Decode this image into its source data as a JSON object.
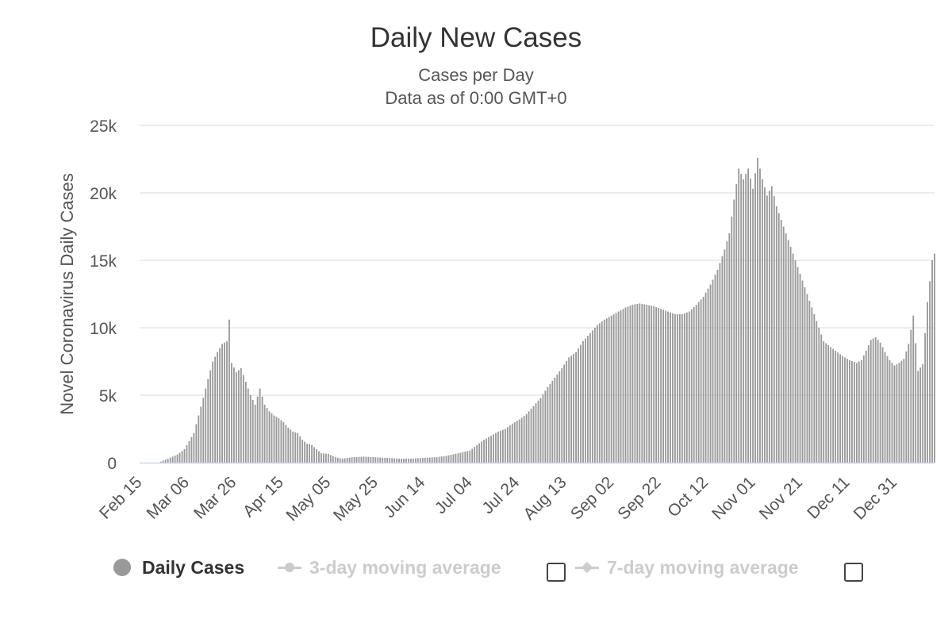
{
  "chart_data": {
    "type": "bar",
    "title": "Daily New Cases",
    "subtitle": [
      "Cases per Day",
      "Data as of 0:00 GMT+0"
    ],
    "ylabel": "Novel Coronavirus Daily Cases",
    "xlabel": "",
    "ylim": [
      0,
      25000
    ],
    "yticks": [
      0,
      5000,
      10000,
      15000,
      20000,
      25000
    ],
    "ytick_labels": [
      "0",
      "5k",
      "10k",
      "15k",
      "20k",
      "25k"
    ],
    "xtick_labels": [
      "Feb 15",
      "Mar 06",
      "Mar 26",
      "Apr 15",
      "May 05",
      "May 25",
      "Jun 14",
      "Jul 04",
      "Jul 24",
      "Aug 13",
      "Sep 02",
      "Sep 22",
      "Oct 12",
      "Nov 01",
      "Nov 21",
      "Dec 11",
      "Dec 31"
    ],
    "x_start": "Feb 15",
    "x_end": "Dec 31",
    "bar_color": "#999999",
    "grid": true,
    "anchor_values": [
      [
        0,
        0
      ],
      [
        8,
        0
      ],
      [
        12,
        300
      ],
      [
        16,
        600
      ],
      [
        19,
        1000
      ],
      [
        21,
        1600
      ],
      [
        23,
        2200
      ],
      [
        25,
        3500
      ],
      [
        27,
        4800
      ],
      [
        29,
        6200
      ],
      [
        31,
        7500
      ],
      [
        33,
        8200
      ],
      [
        35,
        8800
      ],
      [
        37,
        9000
      ],
      [
        38,
        10600
      ],
      [
        39,
        7400
      ],
      [
        41,
        6700
      ],
      [
        43,
        7000
      ],
      [
        45,
        6000
      ],
      [
        47,
        5000
      ],
      [
        49,
        4300
      ],
      [
        51,
        5500
      ],
      [
        53,
        4300
      ],
      [
        55,
        3800
      ],
      [
        57,
        3500
      ],
      [
        59,
        3300
      ],
      [
        61,
        3000
      ],
      [
        63,
        2600
      ],
      [
        65,
        2300
      ],
      [
        67,
        2200
      ],
      [
        69,
        1700
      ],
      [
        71,
        1400
      ],
      [
        73,
        1300
      ],
      [
        75,
        1000
      ],
      [
        77,
        700
      ],
      [
        80,
        650
      ],
      [
        83,
        400
      ],
      [
        86,
        300
      ],
      [
        90,
        400
      ],
      [
        95,
        450
      ],
      [
        100,
        400
      ],
      [
        105,
        350
      ],
      [
        110,
        300
      ],
      [
        115,
        300
      ],
      [
        120,
        350
      ],
      [
        125,
        400
      ],
      [
        130,
        500
      ],
      [
        135,
        700
      ],
      [
        140,
        900
      ],
      [
        143,
        1300
      ],
      [
        146,
        1700
      ],
      [
        149,
        2000
      ],
      [
        152,
        2300
      ],
      [
        155,
        2500
      ],
      [
        158,
        2900
      ],
      [
        161,
        3200
      ],
      [
        164,
        3600
      ],
      [
        167,
        4200
      ],
      [
        170,
        4800
      ],
      [
        173,
        5600
      ],
      [
        176,
        6300
      ],
      [
        179,
        7000
      ],
      [
        182,
        7800
      ],
      [
        185,
        8200
      ],
      [
        188,
        9000
      ],
      [
        191,
        9600
      ],
      [
        194,
        10200
      ],
      [
        197,
        10600
      ],
      [
        200,
        10900
      ],
      [
        203,
        11200
      ],
      [
        206,
        11500
      ],
      [
        209,
        11700
      ],
      [
        212,
        11800
      ],
      [
        215,
        11700
      ],
      [
        218,
        11600
      ],
      [
        221,
        11400
      ],
      [
        224,
        11200
      ],
      [
        227,
        11000
      ],
      [
        230,
        11000
      ],
      [
        233,
        11200
      ],
      [
        236,
        11700
      ],
      [
        239,
        12300
      ],
      [
        242,
        13200
      ],
      [
        245,
        14300
      ],
      [
        248,
        15800
      ],
      [
        250,
        17000
      ],
      [
        252,
        19500
      ],
      [
        254,
        21800
      ],
      [
        256,
        21000
      ],
      [
        258,
        21800
      ],
      [
        260,
        20300
      ],
      [
        262,
        22600
      ],
      [
        264,
        21000
      ],
      [
        266,
        19800
      ],
      [
        268,
        20500
      ],
      [
        270,
        19000
      ],
      [
        272,
        18000
      ],
      [
        274,
        17000
      ],
      [
        276,
        16000
      ],
      [
        278,
        15000
      ],
      [
        280,
        14000
      ],
      [
        282,
        13000
      ],
      [
        284,
        12000
      ],
      [
        286,
        11000
      ],
      [
        288,
        10000
      ],
      [
        290,
        9000
      ],
      [
        292,
        8700
      ],
      [
        295,
        8300
      ],
      [
        298,
        7900
      ],
      [
        301,
        7600
      ],
      [
        304,
        7400
      ],
      [
        306,
        7600
      ],
      [
        308,
        8300
      ],
      [
        310,
        9100
      ],
      [
        312,
        9300
      ],
      [
        314,
        8900
      ],
      [
        316,
        8200
      ],
      [
        318,
        7600
      ],
      [
        320,
        7200
      ],
      [
        322,
        7400
      ],
      [
        324,
        7700
      ],
      [
        326,
        8800
      ],
      [
        328,
        10900
      ],
      [
        330,
        6800
      ],
      [
        332,
        7300
      ],
      [
        334,
        11900
      ],
      [
        336,
        15000
      ],
      [
        337,
        15500
      ]
    ]
  },
  "legend": {
    "items": [
      {
        "label": "Daily Cases",
        "color": "#999999",
        "active": true
      },
      {
        "label": "3-day moving average",
        "color": "#cccccc",
        "active": false
      },
      {
        "label": "7-day moving average",
        "color": "#cccccc",
        "active": false
      }
    ]
  }
}
